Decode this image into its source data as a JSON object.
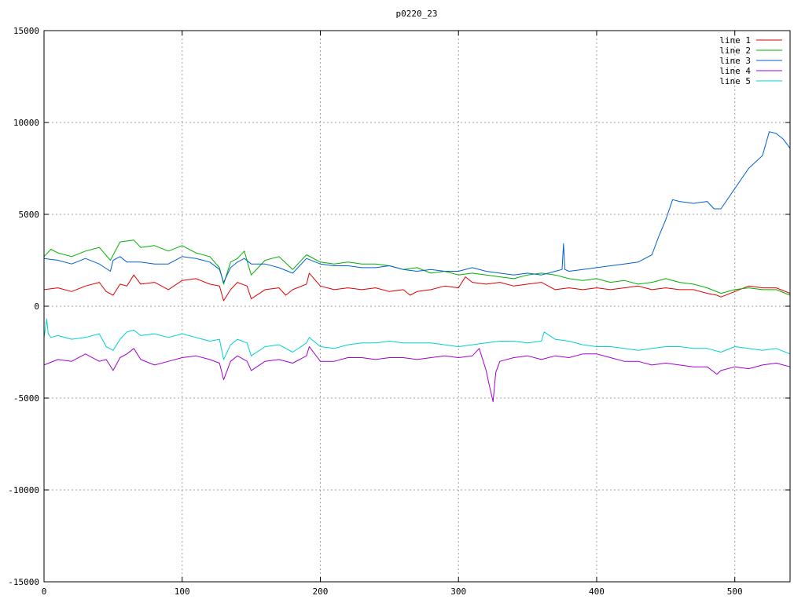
{
  "chart_data": {
    "type": "line",
    "title": "p0220_23",
    "xlabel": "",
    "ylabel": "",
    "xlim": [
      0,
      540
    ],
    "ylim": [
      -15000,
      15000
    ],
    "x_ticks": [
      0,
      100,
      200,
      300,
      400,
      500
    ],
    "y_ticks": [
      -15000,
      -10000,
      -5000,
      0,
      5000,
      10000,
      15000
    ],
    "grid": true,
    "legend_position": "top-right",
    "series": [
      {
        "name": "line 1",
        "color": "#e00000",
        "x": [
          0,
          10,
          20,
          30,
          40,
          45,
          50,
          55,
          60,
          65,
          70,
          80,
          90,
          100,
          110,
          120,
          127,
          130,
          135,
          140,
          147,
          150,
          160,
          170,
          175,
          180,
          190,
          192,
          200,
          210,
          220,
          230,
          240,
          250,
          260,
          265,
          270,
          280,
          290,
          300,
          305,
          310,
          320,
          330,
          340,
          350,
          360,
          370,
          380,
          390,
          400,
          410,
          420,
          430,
          435,
          440,
          450,
          460,
          470,
          480,
          487,
          490,
          500,
          510,
          520,
          530,
          540
        ],
        "y": [
          900,
          1000,
          800,
          1100,
          1300,
          800,
          600,
          1200,
          1100,
          1700,
          1200,
          1300,
          900,
          1400,
          1500,
          1200,
          1100,
          300,
          900,
          1300,
          1100,
          400,
          900,
          1000,
          600,
          900,
          1200,
          1800,
          1100,
          900,
          1000,
          900,
          1000,
          800,
          900,
          600,
          800,
          900,
          1100,
          1000,
          1600,
          1300,
          1200,
          1300,
          1100,
          1200,
          1300,
          900,
          1000,
          900,
          1000,
          900,
          1000,
          1100,
          1000,
          900,
          1000,
          900,
          900,
          700,
          600,
          500,
          800,
          1100,
          1000,
          1000,
          700
        ]
      },
      {
        "name": "line 2",
        "color": "#00b000",
        "x": [
          0,
          5,
          10,
          20,
          30,
          40,
          48,
          55,
          65,
          70,
          80,
          90,
          100,
          110,
          120,
          127,
          130,
          135,
          140,
          145,
          148,
          150,
          160,
          170,
          180,
          190,
          200,
          210,
          220,
          230,
          240,
          250,
          260,
          270,
          280,
          290,
          300,
          310,
          320,
          330,
          340,
          350,
          360,
          370,
          380,
          390,
          400,
          410,
          420,
          430,
          440,
          450,
          460,
          470,
          480,
          490,
          500,
          510,
          520,
          530,
          540
        ],
        "y": [
          2700,
          3100,
          2900,
          2700,
          3000,
          3200,
          2500,
          3500,
          3600,
          3200,
          3300,
          3000,
          3300,
          2900,
          2700,
          2100,
          1200,
          2400,
          2600,
          3000,
          2200,
          1700,
          2500,
          2700,
          2000,
          2800,
          2400,
          2300,
          2400,
          2300,
          2300,
          2200,
          2000,
          2100,
          1800,
          1900,
          1700,
          1800,
          1700,
          1600,
          1500,
          1700,
          1800,
          1700,
          1500,
          1400,
          1500,
          1300,
          1400,
          1200,
          1300,
          1500,
          1300,
          1200,
          1000,
          700,
          900,
          1000,
          900,
          900,
          600
        ]
      },
      {
        "name": "line 3",
        "color": "#0060d0",
        "x": [
          0,
          10,
          20,
          30,
          40,
          48,
          50,
          55,
          60,
          70,
          80,
          90,
          100,
          110,
          120,
          127,
          130,
          135,
          140,
          145,
          150,
          160,
          170,
          180,
          190,
          200,
          210,
          220,
          230,
          240,
          250,
          260,
          270,
          280,
          290,
          300,
          310,
          320,
          330,
          340,
          350,
          360,
          370,
          375,
          376,
          377,
          380,
          390,
          400,
          410,
          420,
          430,
          440,
          445,
          450,
          455,
          460,
          470,
          480,
          485,
          490,
          500,
          510,
          520,
          525,
          530,
          535,
          540
        ],
        "y": [
          2600,
          2500,
          2300,
          2600,
          2300,
          1900,
          2500,
          2700,
          2400,
          2400,
          2300,
          2300,
          2700,
          2600,
          2400,
          2000,
          1300,
          2100,
          2400,
          2600,
          2300,
          2300,
          2100,
          1800,
          2600,
          2300,
          2200,
          2200,
          2100,
          2100,
          2200,
          2000,
          1900,
          2000,
          1900,
          1900,
          2100,
          1900,
          1800,
          1700,
          1800,
          1700,
          1900,
          2000,
          3400,
          2000,
          1900,
          2000,
          2100,
          2200,
          2300,
          2400,
          2800,
          3800,
          4700,
          5800,
          5700,
          5600,
          5700,
          5300,
          5300,
          6400,
          7500,
          8200,
          9500,
          9400,
          9100,
          8600
        ]
      },
      {
        "name": "line 4",
        "color": "#a000d0",
        "x": [
          0,
          10,
          20,
          30,
          40,
          45,
          50,
          55,
          60,
          65,
          70,
          80,
          90,
          100,
          110,
          120,
          127,
          130,
          135,
          140,
          147,
          150,
          160,
          170,
          180,
          190,
          192,
          200,
          210,
          220,
          230,
          240,
          250,
          260,
          270,
          280,
          290,
          300,
          310,
          315,
          320,
          322,
          325,
          327,
          330,
          340,
          350,
          360,
          370,
          380,
          390,
          400,
          410,
          420,
          430,
          440,
          450,
          460,
          470,
          480,
          487,
          490,
          500,
          510,
          520,
          530,
          540
        ],
        "y": [
          -3200,
          -2900,
          -3000,
          -2600,
          -3000,
          -2900,
          -3500,
          -2800,
          -2600,
          -2300,
          -2900,
          -3200,
          -3000,
          -2800,
          -2700,
          -2900,
          -3100,
          -4000,
          -3000,
          -2700,
          -3000,
          -3500,
          -3000,
          -2900,
          -3100,
          -2700,
          -2200,
          -3000,
          -3000,
          -2800,
          -2800,
          -2900,
          -2800,
          -2800,
          -2900,
          -2800,
          -2700,
          -2800,
          -2700,
          -2300,
          -3500,
          -4200,
          -5200,
          -3600,
          -3000,
          -2800,
          -2700,
          -2900,
          -2700,
          -2800,
          -2600,
          -2600,
          -2800,
          -3000,
          -3000,
          -3200,
          -3100,
          -3200,
          -3300,
          -3300,
          -3700,
          -3500,
          -3300,
          -3400,
          -3200,
          -3100,
          -3300
        ]
      },
      {
        "name": "line 5",
        "color": "#00d0d0",
        "x": [
          0,
          2,
          3,
          5,
          10,
          20,
          30,
          40,
          45,
          50,
          55,
          60,
          65,
          70,
          80,
          90,
          100,
          110,
          120,
          127,
          130,
          135,
          140,
          147,
          150,
          160,
          170,
          180,
          190,
          192,
          200,
          210,
          220,
          230,
          240,
          250,
          260,
          270,
          280,
          290,
          300,
          310,
          320,
          330,
          340,
          350,
          360,
          362,
          370,
          380,
          390,
          400,
          410,
          420,
          430,
          440,
          450,
          460,
          470,
          480,
          490,
          500,
          510,
          520,
          530,
          540
        ],
        "y": [
          -1700,
          -700,
          -1500,
          -1700,
          -1600,
          -1800,
          -1700,
          -1500,
          -2200,
          -2400,
          -1800,
          -1400,
          -1300,
          -1600,
          -1500,
          -1700,
          -1500,
          -1700,
          -1900,
          -1800,
          -2900,
          -2100,
          -1800,
          -2000,
          -2700,
          -2200,
          -2100,
          -2500,
          -2000,
          -1700,
          -2200,
          -2300,
          -2100,
          -2000,
          -2000,
          -1900,
          -2000,
          -2000,
          -2000,
          -2100,
          -2200,
          -2100,
          -2000,
          -1900,
          -1900,
          -2000,
          -1900,
          -1400,
          -1800,
          -1900,
          -2100,
          -2200,
          -2200,
          -2300,
          -2400,
          -2300,
          -2200,
          -2200,
          -2300,
          -2300,
          -2500,
          -2200,
          -2300,
          -2400,
          -2300,
          -2600
        ]
      }
    ]
  }
}
